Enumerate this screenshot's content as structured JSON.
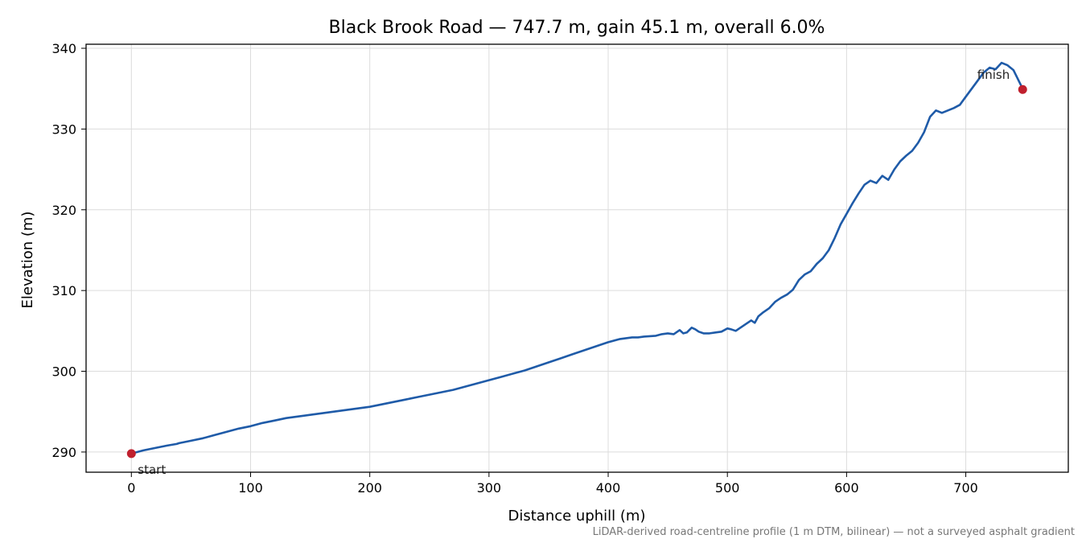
{
  "chart_data": {
    "type": "line",
    "title": "Black Brook Road — 747.7 m, gain 45.1 m, overall 6.0%",
    "xlabel": "Distance uphill (m)",
    "ylabel": "Elevation (m)",
    "xlim": [
      -38,
      786
    ],
    "ylim": [
      287.5,
      340.5
    ],
    "xticks": [
      0,
      100,
      200,
      300,
      400,
      500,
      600,
      700
    ],
    "yticks": [
      290,
      300,
      310,
      320,
      330,
      340
    ],
    "grid": true,
    "footnote": "LiDAR-derived road-centreline profile (1 m DTM, bilinear) — not a surveyed asphalt gradient",
    "line_color": "#1f5ba8",
    "marker_color": "#c0202e",
    "series": [
      {
        "x": [
          0,
          10,
          20,
          30,
          38,
          40,
          50,
          60,
          70,
          80,
          90,
          100,
          110,
          120,
          130,
          140,
          150,
          160,
          170,
          180,
          190,
          200,
          210,
          220,
          230,
          240,
          250,
          260,
          270,
          280,
          290,
          300,
          310,
          320,
          330,
          340,
          350,
          360,
          370,
          380,
          390,
          400,
          410,
          420,
          425,
          430,
          440,
          445,
          450,
          455,
          460,
          463,
          466,
          470,
          473,
          476,
          480,
          485,
          490,
          495,
          500,
          503,
          507,
          510,
          515,
          520,
          523,
          526,
          530,
          535,
          540,
          545,
          550,
          555,
          560,
          565,
          570,
          575,
          580,
          585,
          590,
          595,
          600,
          605,
          610,
          615,
          620,
          625,
          630,
          635,
          640,
          645,
          650,
          655,
          660,
          665,
          670,
          675,
          680,
          685,
          690,
          695,
          700,
          705,
          710,
          715,
          720,
          725,
          730,
          735,
          740,
          748
        ],
        "y": [
          289.8,
          290.2,
          290.5,
          290.8,
          291.0,
          291.1,
          291.4,
          291.7,
          292.1,
          292.5,
          292.9,
          293.2,
          293.6,
          293.9,
          294.2,
          294.4,
          294.6,
          294.8,
          295.0,
          295.2,
          295.4,
          295.6,
          295.9,
          296.2,
          296.5,
          296.8,
          297.1,
          297.4,
          297.7,
          298.1,
          298.5,
          298.9,
          299.3,
          299.7,
          300.1,
          300.6,
          301.1,
          301.6,
          302.1,
          302.6,
          303.1,
          303.6,
          304.0,
          304.2,
          304.2,
          304.3,
          304.4,
          304.6,
          304.7,
          304.6,
          305.1,
          304.7,
          304.8,
          305.4,
          305.2,
          304.9,
          304.7,
          304.7,
          304.8,
          304.9,
          305.3,
          305.2,
          305.0,
          305.3,
          305.8,
          306.3,
          306.0,
          306.8,
          307.3,
          307.8,
          308.6,
          309.1,
          309.5,
          310.1,
          311.3,
          312.0,
          312.4,
          313.3,
          314.0,
          315.0,
          316.5,
          318.2,
          319.5,
          320.8,
          322.0,
          323.1,
          323.6,
          323.3,
          324.2,
          323.7,
          325.0,
          326.0,
          326.7,
          327.3,
          328.3,
          329.6,
          331.5,
          332.3,
          332.0,
          332.3,
          332.6,
          333.0,
          334.0,
          335.0,
          336.0,
          337.0,
          337.6,
          337.4,
          338.2,
          337.9,
          337.3,
          334.9
        ]
      }
    ],
    "annotations": [
      {
        "text": "start",
        "x": 0,
        "y": 289.8
      },
      {
        "text": "finish",
        "x": 747.7,
        "y": 334.9
      }
    ]
  }
}
